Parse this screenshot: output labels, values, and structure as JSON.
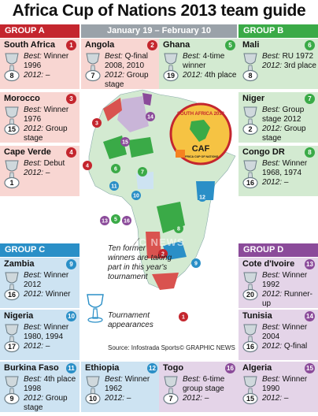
{
  "title": "Africa Cup of Nations 2013 team guide",
  "dates": "January 19 – February 10",
  "groups": {
    "a": "GROUP A",
    "b": "GROUP B",
    "c": "GROUP C",
    "d": "GROUP D"
  },
  "colors": {
    "a": "#c4262e",
    "b": "#3aaa47",
    "c": "#2a8fc7",
    "d": "#8b4b9a"
  },
  "labels": {
    "best": "Best:",
    "year": "2012:"
  },
  "teams": {
    "south_africa": {
      "name": "South Africa",
      "num": "1",
      "apps": "8",
      "best": "Winner 1996",
      "y2012": "–"
    },
    "morocco": {
      "name": "Morocco",
      "num": "3",
      "apps": "15",
      "best": "Winner 1976",
      "y2012": "Group stage"
    },
    "cape_verde": {
      "name": "Cape Verde",
      "num": "4",
      "apps": "1",
      "best": "Debut",
      "y2012": "–"
    },
    "angola": {
      "name": "Angola",
      "num": "2",
      "apps": "7",
      "best": "Q-final 2008, 2010",
      "y2012": "Group stage"
    },
    "ghana": {
      "name": "Ghana",
      "num": "5",
      "apps": "19",
      "best": "4-time winner",
      "y2012": "4th place"
    },
    "mali": {
      "name": "Mali",
      "num": "6",
      "apps": "8",
      "best": "RU 1972",
      "y2012": "3rd place"
    },
    "niger": {
      "name": "Niger",
      "num": "7",
      "apps": "2",
      "best": "Group stage 2012",
      "y2012": "Group stage"
    },
    "congo_dr": {
      "name": "Congo DR",
      "num": "8",
      "apps": "16",
      "best": "Winner 1968, 1974",
      "y2012": "–"
    },
    "zambia": {
      "name": "Zambia",
      "num": "9",
      "apps": "16",
      "best": "Winner 2012",
      "y2012": "Winner"
    },
    "nigeria": {
      "name": "Nigeria",
      "num": "10",
      "apps": "17",
      "best": "Winner 1980, 1994",
      "y2012": "–"
    },
    "burkina_faso": {
      "name": "Burkina Faso",
      "num": "11",
      "apps": "9",
      "best": "4th place 1998",
      "y2012": "Group stage"
    },
    "ethiopia": {
      "name": "Ethiopia",
      "num": "12",
      "apps": "10",
      "best": "Winner 1962",
      "y2012": "–"
    },
    "togo": {
      "name": "Togo",
      "num": "16",
      "apps": "7",
      "best": "6-time group stage",
      "y2012": "–"
    },
    "algeria": {
      "name": "Algeria",
      "num": "15",
      "apps": "15",
      "best": "Winner 1990",
      "y2012": "–"
    },
    "cote_divoire": {
      "name": "Cote d'Ivoire",
      "num": "13",
      "apps": "20",
      "best": "Winner 1992",
      "y2012": "Runner-up"
    },
    "tunisia": {
      "name": "Tunisia",
      "num": "14",
      "apps": "16",
      "best": "Winner 2004",
      "y2012": "Q-final"
    }
  },
  "map": {
    "note": "Ten former winners are taking part in this year's tournament",
    "legend": "Tournament appearances",
    "logo_top": "SOUTH AFRICA 2013",
    "logo_caf": "CAF",
    "logo_small": "AFRICA CUP OF NATIONS",
    "logo_side": "ORANGE",
    "pins": [
      "1",
      "2",
      "3",
      "4",
      "5",
      "6",
      "7",
      "8",
      "9",
      "10",
      "11",
      "12",
      "13",
      "14",
      "15",
      "16"
    ]
  },
  "source": "Source: Infostrada Sports",
  "credit": "© GRAPHIC NEWS",
  "watermark": "GRAPHIC NEWS"
}
